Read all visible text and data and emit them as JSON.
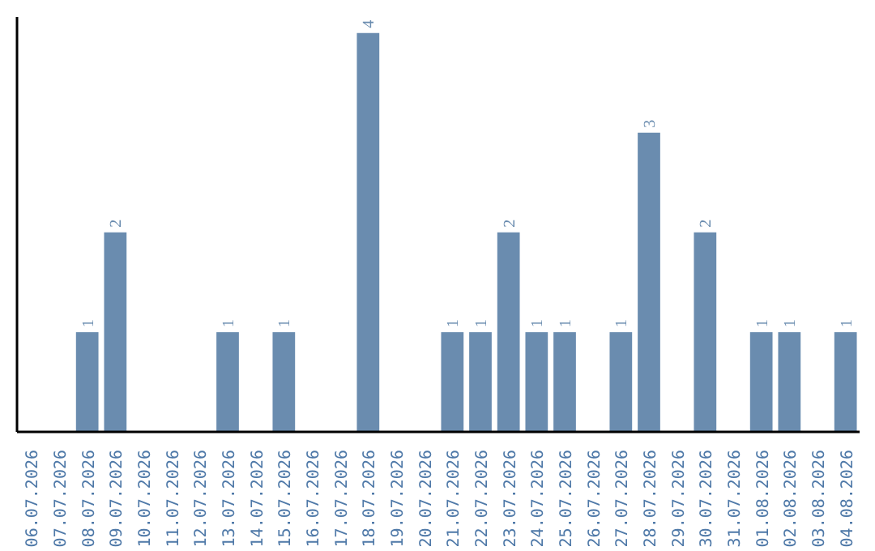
{
  "chart_data": {
    "type": "bar",
    "categories": [
      "06.07.2026",
      "07.07.2026",
      "08.07.2026",
      "09.07.2026",
      "10.07.2026",
      "11.07.2026",
      "12.07.2026",
      "13.07.2026",
      "14.07.2026",
      "15.07.2026",
      "16.07.2026",
      "17.07.2026",
      "18.07.2026",
      "19.07.2026",
      "20.07.2026",
      "21.07.2026",
      "22.07.2026",
      "23.07.2026",
      "24.07.2026",
      "25.07.2026",
      "26.07.2026",
      "27.07.2026",
      "28.07.2026",
      "29.07.2026",
      "30.07.2026",
      "31.07.2026",
      "01.08.2026",
      "02.08.2026",
      "03.08.2026",
      "04.08.2026"
    ],
    "values": [
      0,
      0,
      1,
      2,
      0,
      0,
      0,
      1,
      0,
      1,
      0,
      0,
      4,
      0,
      0,
      1,
      1,
      2,
      1,
      1,
      0,
      1,
      3,
      0,
      2,
      0,
      1,
      1,
      0,
      1
    ],
    "value_labels": [
      null,
      null,
      "1",
      "2",
      null,
      null,
      null,
      "1",
      null,
      "1",
      null,
      null,
      "4",
      null,
      null,
      "1",
      "1",
      "2",
      "1",
      "1",
      null,
      "1",
      "3",
      null,
      "2",
      null,
      "1",
      "1",
      null,
      "1"
    ],
    "color": "#6a8caf",
    "ylim": [
      0,
      4.16
    ],
    "tick_labels": "x",
    "grid": false
  }
}
